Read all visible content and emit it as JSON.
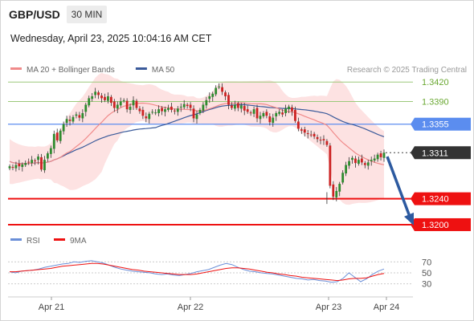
{
  "header": {
    "symbol": "GBP/USD",
    "timeframe": "30 MIN",
    "datetime": "Wednesday, April 23, 2025 10:04:16 AM CET"
  },
  "colors": {
    "bull": "#2e8b2e",
    "bear": "#cc2222",
    "ma20": "#f08a8a",
    "bollinger_fill": "#fde2e2",
    "ma50": "#3a5a9a",
    "resistance_green": "#9bc97a",
    "pivot_blue": "#5b8def",
    "support_red": "#ee1111",
    "arrow": "#2d5aa0",
    "rsi": "#6a8fd8",
    "rsi_ma": "#ee1111"
  },
  "chart_data": [
    {
      "type": "candlestick",
      "legend": [
        {
          "label": "MA 20 + Bollinger Bands",
          "color": "#f08a8a"
        },
        {
          "label": "MA 50",
          "color": "#3a5a9a"
        }
      ],
      "source": "Research © 2025 Trading Central",
      "ylim": [
        1.3175,
        1.3455
      ],
      "x_ticks": [
        "Apr 21",
        "Apr 22",
        "Apr 23",
        "Apr 24"
      ],
      "levels": [
        {
          "value": 1.342,
          "label": "1.3420",
          "kind": "resistance"
        },
        {
          "value": 1.339,
          "label": "1.3390",
          "kind": "resistance"
        },
        {
          "value": 1.3355,
          "label": "1.3355",
          "kind": "pivot"
        },
        {
          "value": 1.3311,
          "label": "1.3311",
          "kind": "last"
        },
        {
          "value": 1.324,
          "label": "1.3240",
          "kind": "support"
        },
        {
          "value": 1.32,
          "label": "1.3200",
          "kind": "support"
        }
      ],
      "close": [
        1.329,
        1.3288,
        1.3292,
        1.329,
        1.3293,
        1.3295,
        1.3296,
        1.33,
        1.3298,
        1.3305,
        1.3285,
        1.33,
        1.331,
        1.3318,
        1.334,
        1.333,
        1.3345,
        1.3355,
        1.3363,
        1.336,
        1.3366,
        1.337,
        1.3365,
        1.3372,
        1.3385,
        1.3395,
        1.3398,
        1.3405,
        1.34,
        1.3395,
        1.3392,
        1.3398,
        1.3388,
        1.338,
        1.3385,
        1.339,
        1.3392,
        1.3378,
        1.3382,
        1.3392,
        1.338,
        1.3375,
        1.3368,
        1.3364,
        1.3371,
        1.3374,
        1.3373,
        1.3378,
        1.3375,
        1.3378,
        1.338,
        1.3377,
        1.3375,
        1.3379,
        1.3382,
        1.3386,
        1.3383,
        1.338,
        1.3364,
        1.337,
        1.3377,
        1.3385,
        1.3392,
        1.3398,
        1.3402,
        1.3411,
        1.3413,
        1.3405,
        1.3398,
        1.3385,
        1.338,
        1.3385,
        1.338,
        1.3384,
        1.3376,
        1.3374,
        1.3372,
        1.3378,
        1.3364,
        1.3368,
        1.3372,
        1.3368,
        1.3358,
        1.3365,
        1.3372,
        1.3374,
        1.337,
        1.3379,
        1.3382,
        1.3375,
        1.336,
        1.3348,
        1.3345,
        1.3342,
        1.334,
        1.3338,
        1.3336,
        1.3332,
        1.333,
        1.333,
        1.3323,
        1.326,
        1.3243,
        1.3252,
        1.3263,
        1.328,
        1.3292,
        1.3298,
        1.3303,
        1.3295,
        1.33,
        1.3296,
        1.3292,
        1.3296,
        1.33,
        1.3302,
        1.3308,
        1.3304,
        1.3311
      ],
      "ma20_start": [
        1.3286,
        1.3294,
        1.332
      ],
      "rsi_panel": {
        "legend": [
          {
            "label": "RSI",
            "color": "#6a8fd8"
          },
          {
            "label": "9MA",
            "color": "#ee1111"
          }
        ],
        "levels": [
          70,
          50,
          30
        ],
        "ylim": [
          15,
          85
        ],
        "rsi": [
          52,
          50,
          53,
          54,
          55,
          57,
          60,
          62,
          64,
          66,
          67,
          70,
          69,
          71,
          72,
          70,
          68,
          64,
          60,
          57,
          55,
          53,
          52,
          51,
          50,
          48,
          47,
          48,
          46,
          45,
          47,
          49,
          52,
          54,
          56,
          60,
          64,
          67,
          65,
          60,
          56,
          53,
          52,
          50,
          49,
          48,
          46,
          44,
          42,
          40,
          39,
          37,
          38,
          36,
          35,
          33,
          34,
          40,
          50,
          42,
          34,
          39,
          47,
          53,
          57
        ],
        "ma9": [
          52,
          52,
          53,
          54,
          55,
          56,
          57,
          58,
          60,
          62,
          63,
          64,
          65,
          66,
          67,
          67,
          66,
          64,
          62,
          60,
          58,
          56,
          55,
          53,
          52,
          51,
          50,
          49,
          48,
          47,
          47,
          47,
          48,
          50,
          52,
          54,
          56,
          58,
          59,
          59,
          58,
          57,
          55,
          53,
          51,
          50,
          48,
          47,
          45,
          44,
          42,
          41,
          40,
          39,
          38,
          37,
          36,
          37,
          39,
          40,
          40,
          41,
          44,
          47,
          49
        ]
      }
    }
  ]
}
